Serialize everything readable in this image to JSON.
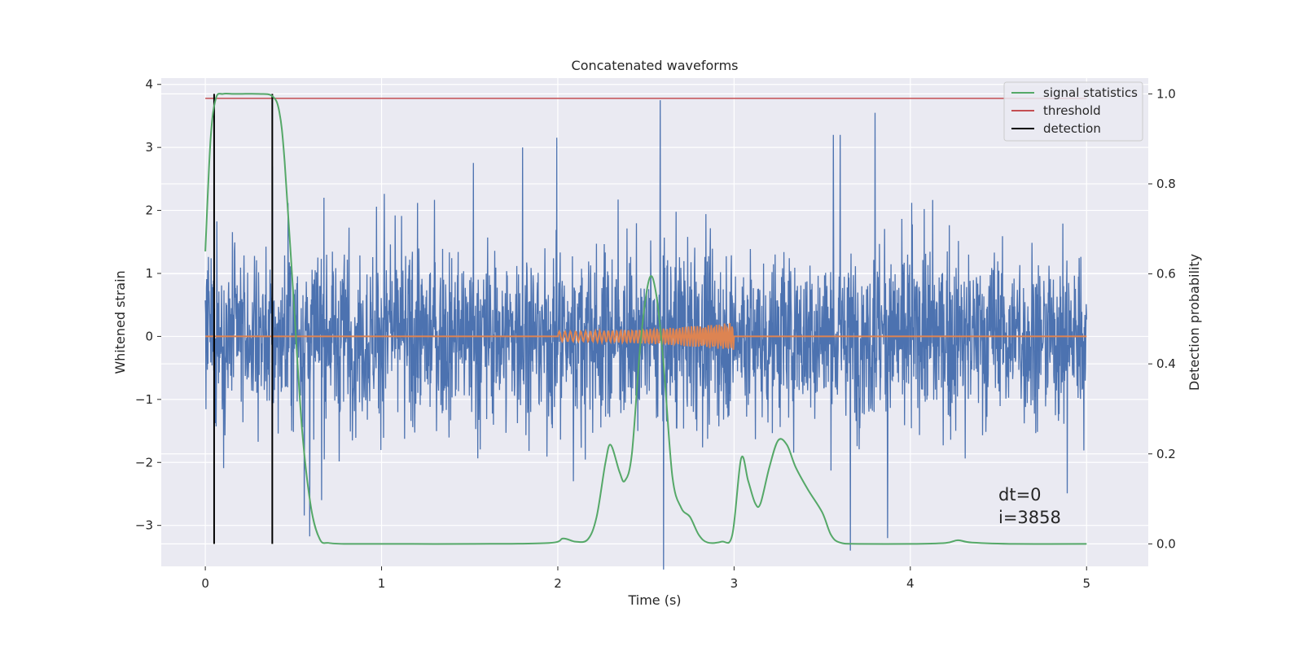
{
  "chart_data": {
    "type": "line",
    "title": "Concatenated waveforms",
    "xlabel": "Time (s)",
    "ylabel": "Whitened strain",
    "y2label": "Detection probability",
    "xlim": [
      -0.25,
      5.35
    ],
    "ylim": [
      -3.65,
      4.1
    ],
    "y2lim": [
      -0.05,
      1.035
    ],
    "xticks": [
      "0",
      "1",
      "2",
      "3",
      "4",
      "5"
    ],
    "yticks": [
      "−3",
      "−2",
      "−1",
      "0",
      "1",
      "2",
      "3",
      "4"
    ],
    "y2ticks": [
      "0.0",
      "0.2",
      "0.4",
      "0.6",
      "0.8",
      "1.0"
    ],
    "grid": true,
    "legend_position": "top-right",
    "legend": [
      "signal statistics",
      "threshold",
      "detection"
    ],
    "colors": {
      "noise": "#4c72b0",
      "chirp": "#dd8452",
      "signal_statistics": "#55a868",
      "threshold": "#c44e52",
      "detection": "#000000",
      "background": "#eaeaf2",
      "grid": "#ffffff"
    },
    "series": [
      {
        "name": "",
        "axis": "left",
        "description_note": "whitened noise, values approx within [-3.8, 3.8], dense",
        "x_range": [
          0,
          5
        ],
        "envelope_typical": 1.3,
        "peaks": [
          [
            2.58,
            3.75
          ],
          [
            3.66,
            -3.4
          ],
          [
            3.8,
            3.55
          ],
          [
            0.38,
            2.7
          ],
          [
            1.8,
            3.0
          ],
          [
            2.6,
            -3.7
          ]
        ]
      },
      {
        "name": "",
        "axis": "left",
        "description_note": "chirp",
        "x_range": [
          2.0,
          3.0
        ],
        "amplitude_start": 0.08,
        "amplitude_end": 0.22,
        "freq_start_hz": 30,
        "freq_end_hz": 70
      },
      {
        "name": "signal statistics",
        "axis": "right",
        "x": [
          0,
          0.03,
          0.06,
          0.1,
          0.15,
          0.2,
          0.3,
          0.38,
          0.42,
          0.45,
          0.5,
          0.55,
          0.6,
          0.65,
          0.7,
          0.8,
          1.0,
          1.5,
          1.95,
          2.03,
          2.1,
          2.17,
          2.22,
          2.27,
          2.3,
          2.35,
          2.38,
          2.42,
          2.47,
          2.52,
          2.56,
          2.6,
          2.65,
          2.7,
          2.75,
          2.8,
          2.85,
          2.93,
          2.99,
          3.04,
          3.08,
          3.12,
          3.15,
          3.2,
          3.25,
          3.3,
          3.35,
          3.42,
          3.5,
          3.55,
          3.6,
          3.7,
          4.0,
          4.2,
          4.27,
          4.35,
          4.6,
          5.0
        ],
        "y": [
          0.65,
          0.9,
          0.99,
          1.0,
          1.0,
          1.0,
          1.0,
          0.995,
          0.96,
          0.85,
          0.55,
          0.25,
          0.08,
          0.01,
          0.002,
          0.0,
          0.0,
          0.0,
          0.002,
          0.012,
          0.005,
          0.01,
          0.06,
          0.18,
          0.22,
          0.16,
          0.14,
          0.2,
          0.45,
          0.59,
          0.55,
          0.4,
          0.15,
          0.08,
          0.06,
          0.02,
          0.003,
          0.005,
          0.02,
          0.19,
          0.14,
          0.09,
          0.09,
          0.17,
          0.23,
          0.22,
          0.17,
          0.12,
          0.07,
          0.02,
          0.003,
          0.0,
          0.0,
          0.002,
          0.008,
          0.003,
          0.0,
          0.0
        ]
      },
      {
        "name": "threshold",
        "axis": "right",
        "x": [
          0,
          5
        ],
        "y": [
          0.99,
          0.99
        ]
      }
    ],
    "detections": [
      0.05,
      0.38
    ],
    "annotations": [
      "dt=0",
      "i=3858"
    ]
  }
}
